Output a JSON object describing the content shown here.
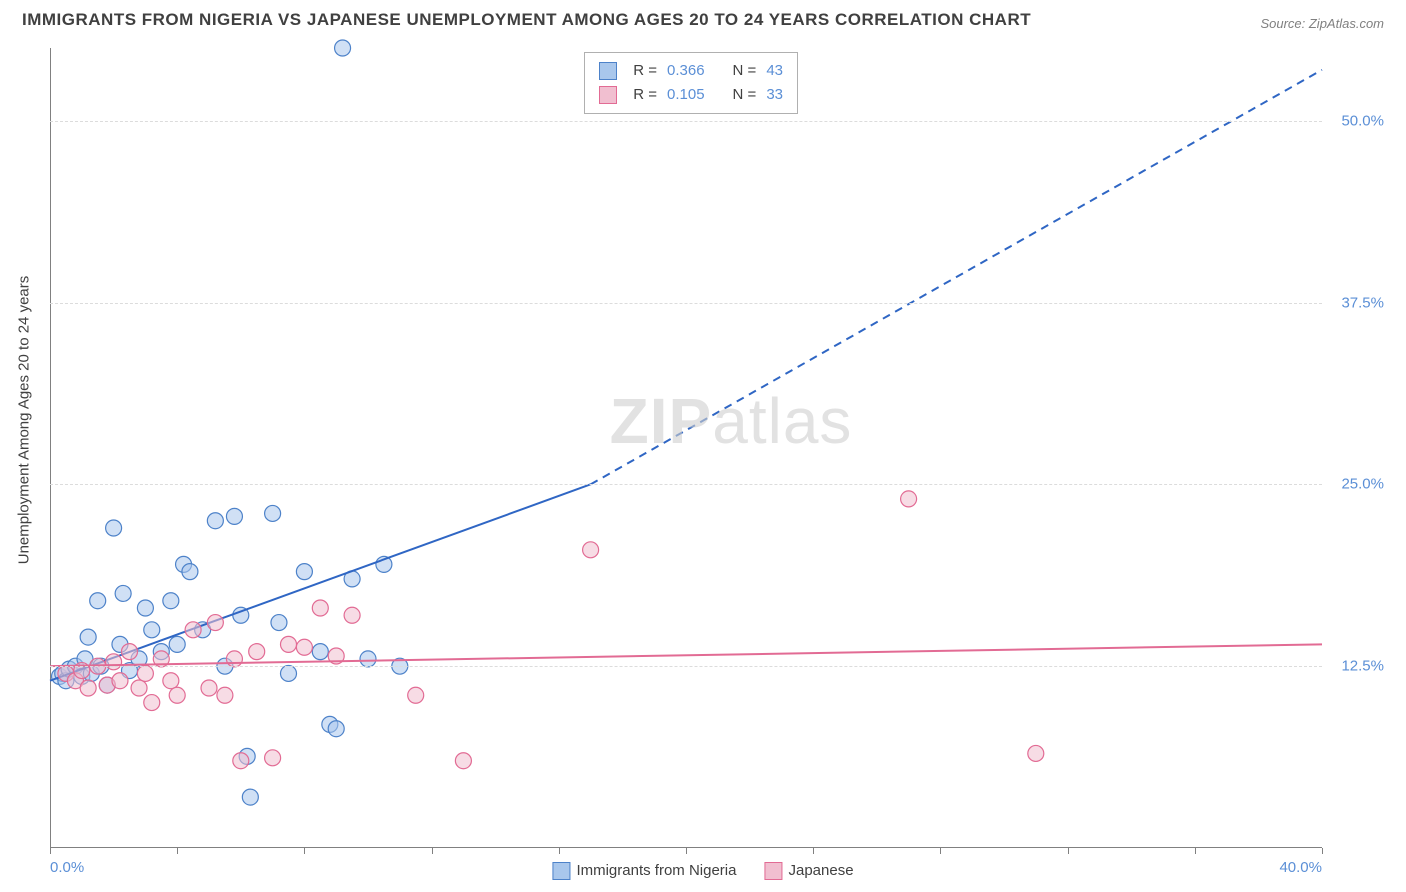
{
  "title": "IMMIGRANTS FROM NIGERIA VS JAPANESE UNEMPLOYMENT AMONG AGES 20 TO 24 YEARS CORRELATION CHART",
  "source": "Source: ZipAtlas.com",
  "y_axis_label": "Unemployment Among Ages 20 to 24 years",
  "watermark_bold": "ZIP",
  "watermark_light": "atlas",
  "chart": {
    "type": "scatter",
    "xlim": [
      0,
      40
    ],
    "ylim": [
      0,
      55
    ],
    "x_tick_positions": [
      0,
      4,
      8,
      12,
      16,
      20,
      24,
      28,
      32,
      36,
      40
    ],
    "x_left_label": "0.0%",
    "x_right_label": "40.0%",
    "y_tick_values": [
      12.5,
      25.0,
      37.5,
      50.0
    ],
    "y_tick_labels": [
      "12.5%",
      "25.0%",
      "37.5%",
      "50.0%"
    ],
    "grid_color": "#dcdcdc",
    "axis_color": "#808080",
    "background_color": "#ffffff",
    "marker_radius": 8,
    "marker_opacity": 0.55,
    "marker_stroke_width": 1.2,
    "series": [
      {
        "name": "Immigrants from Nigeria",
        "fill_color": "#a9c7ec",
        "stroke_color": "#4d82c9",
        "line_color": "#2f66c4",
        "line_width": 2,
        "R": "0.366",
        "N": "43",
        "trend": {
          "x1": 0,
          "y1": 11.5,
          "x2_solid": 17,
          "y2_solid": 25,
          "x2_dash": 40,
          "y2_dash": 53.5
        },
        "points": [
          [
            0.3,
            11.8
          ],
          [
            0.4,
            12.0
          ],
          [
            0.5,
            11.5
          ],
          [
            0.6,
            12.3
          ],
          [
            0.8,
            12.5
          ],
          [
            1.0,
            11.8
          ],
          [
            1.1,
            13.0
          ],
          [
            1.2,
            14.5
          ],
          [
            1.3,
            12.0
          ],
          [
            1.5,
            17.0
          ],
          [
            1.6,
            12.5
          ],
          [
            1.8,
            11.2
          ],
          [
            2.0,
            22.0
          ],
          [
            2.2,
            14.0
          ],
          [
            2.3,
            17.5
          ],
          [
            2.5,
            12.2
          ],
          [
            2.8,
            13.0
          ],
          [
            3.0,
            16.5
          ],
          [
            3.2,
            15.0
          ],
          [
            3.5,
            13.5
          ],
          [
            3.8,
            17.0
          ],
          [
            4.0,
            14.0
          ],
          [
            4.2,
            19.5
          ],
          [
            4.4,
            19.0
          ],
          [
            4.8,
            15.0
          ],
          [
            5.2,
            22.5
          ],
          [
            5.5,
            12.5
          ],
          [
            5.8,
            22.8
          ],
          [
            6.0,
            16.0
          ],
          [
            6.2,
            6.3
          ],
          [
            6.3,
            3.5
          ],
          [
            7.0,
            23.0
          ],
          [
            7.2,
            15.5
          ],
          [
            7.5,
            12.0
          ],
          [
            8.0,
            19.0
          ],
          [
            8.5,
            13.5
          ],
          [
            8.8,
            8.5
          ],
          [
            9.0,
            8.2
          ],
          [
            9.2,
            55.0
          ],
          [
            9.5,
            18.5
          ],
          [
            10.0,
            13.0
          ],
          [
            10.5,
            19.5
          ],
          [
            11.0,
            12.5
          ]
        ]
      },
      {
        "name": "Japanese",
        "fill_color": "#f1bfd0",
        "stroke_color": "#e26b94",
        "line_color": "#e26b94",
        "line_width": 2,
        "R": "0.105",
        "N": "33",
        "trend": {
          "x1": 0,
          "y1": 12.5,
          "x2_solid": 40,
          "y2_solid": 14.0,
          "x2_dash": 40,
          "y2_dash": 14.0
        },
        "points": [
          [
            0.5,
            12.0
          ],
          [
            0.8,
            11.5
          ],
          [
            1.0,
            12.2
          ],
          [
            1.2,
            11.0
          ],
          [
            1.5,
            12.5
          ],
          [
            1.8,
            11.2
          ],
          [
            2.0,
            12.8
          ],
          [
            2.2,
            11.5
          ],
          [
            2.5,
            13.5
          ],
          [
            2.8,
            11.0
          ],
          [
            3.0,
            12.0
          ],
          [
            3.2,
            10.0
          ],
          [
            3.5,
            13.0
          ],
          [
            3.8,
            11.5
          ],
          [
            4.0,
            10.5
          ],
          [
            4.5,
            15.0
          ],
          [
            5.0,
            11.0
          ],
          [
            5.2,
            15.5
          ],
          [
            5.5,
            10.5
          ],
          [
            5.8,
            13.0
          ],
          [
            6.0,
            6.0
          ],
          [
            6.5,
            13.5
          ],
          [
            7.0,
            6.2
          ],
          [
            7.5,
            14.0
          ],
          [
            8.0,
            13.8
          ],
          [
            8.5,
            16.5
          ],
          [
            9.0,
            13.2
          ],
          [
            9.5,
            16.0
          ],
          [
            11.5,
            10.5
          ],
          [
            13.0,
            6.0
          ],
          [
            17.0,
            20.5
          ],
          [
            27.0,
            24.0
          ],
          [
            31.0,
            6.5
          ]
        ]
      }
    ]
  },
  "top_legend": {
    "R_label": "R =",
    "N_label": "N ="
  },
  "bottom_legend": {
    "items": [
      "Immigrants from Nigeria",
      "Japanese"
    ]
  }
}
